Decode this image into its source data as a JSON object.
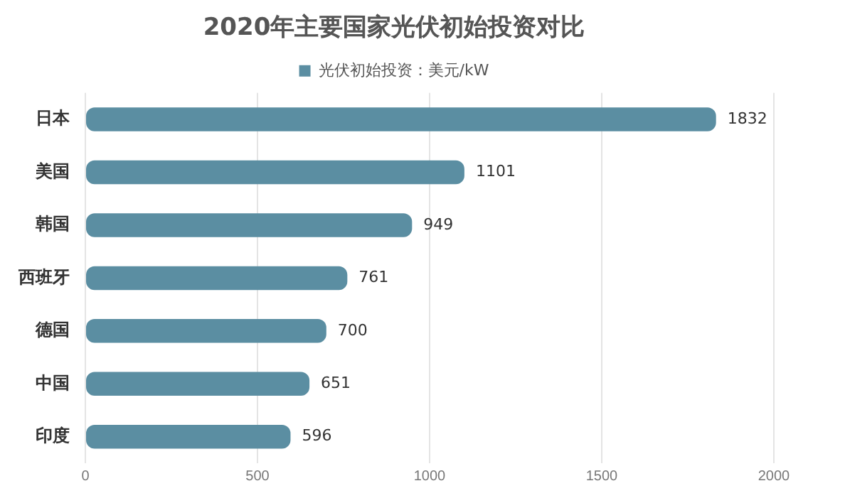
{
  "chart_data": {
    "type": "bar",
    "orientation": "horizontal",
    "title": "2020年主要国家光伏初始投资对比",
    "categories": [
      "日本",
      "美国",
      "韩国",
      "西班牙",
      "德国",
      "中国",
      "印度"
    ],
    "series": [
      {
        "name": "光伏初始投资：美元/kW",
        "color": "#5b8ea2",
        "values": [
          1832,
          1101,
          949,
          761,
          700,
          651,
          596
        ]
      }
    ],
    "xlim": [
      0,
      2000
    ],
    "xticks": [
      0,
      500,
      1000,
      1500,
      2000
    ],
    "grid": "x",
    "legend": "top",
    "data_labels": true
  }
}
